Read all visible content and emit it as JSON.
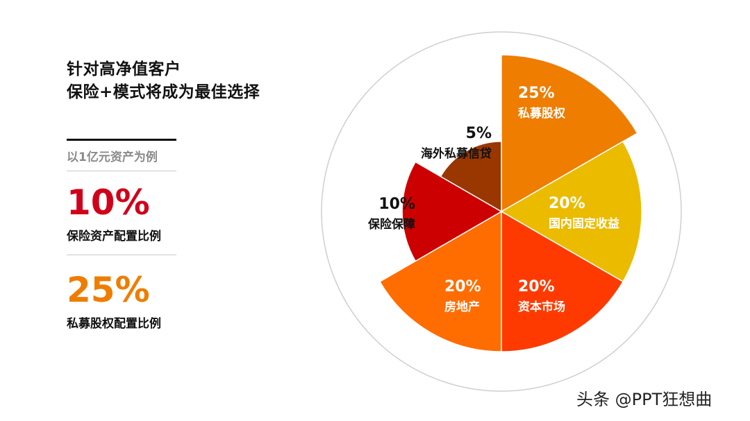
{
  "panel": {
    "title_line1": "针对高净值客户",
    "title_line2": "保险+模式将成为最佳选择",
    "subtitle": "以1亿元资产为例",
    "stats": [
      {
        "value": "10%",
        "label": "保险资产配置比例",
        "color": "#d0021b"
      },
      {
        "value": "25%",
        "label": "私募股权配置比例",
        "color": "#ee7d00"
      }
    ]
  },
  "chart_data": {
    "type": "pie",
    "variant": "polar-area",
    "slices": [
      {
        "name": "私募股权",
        "value": 25,
        "label": "25%",
        "color": "#ee7d00"
      },
      {
        "name": "国内固定收益",
        "value": 20,
        "label": "20%",
        "color": "#ebbb00"
      },
      {
        "name": "资本市场",
        "value": 20,
        "label": "20%",
        "color": "#ff3a00"
      },
      {
        "name": "房地产",
        "value": 20,
        "label": "20%",
        "color": "#ff6d00"
      },
      {
        "name": "保险保障",
        "value": 10,
        "label": "10%",
        "color": "#cc0000"
      },
      {
        "name": "海外私募信贷",
        "value": 5,
        "label": "5%",
        "color": "#9a3700"
      }
    ]
  },
  "watermark": "头条 @PPT狂想曲"
}
